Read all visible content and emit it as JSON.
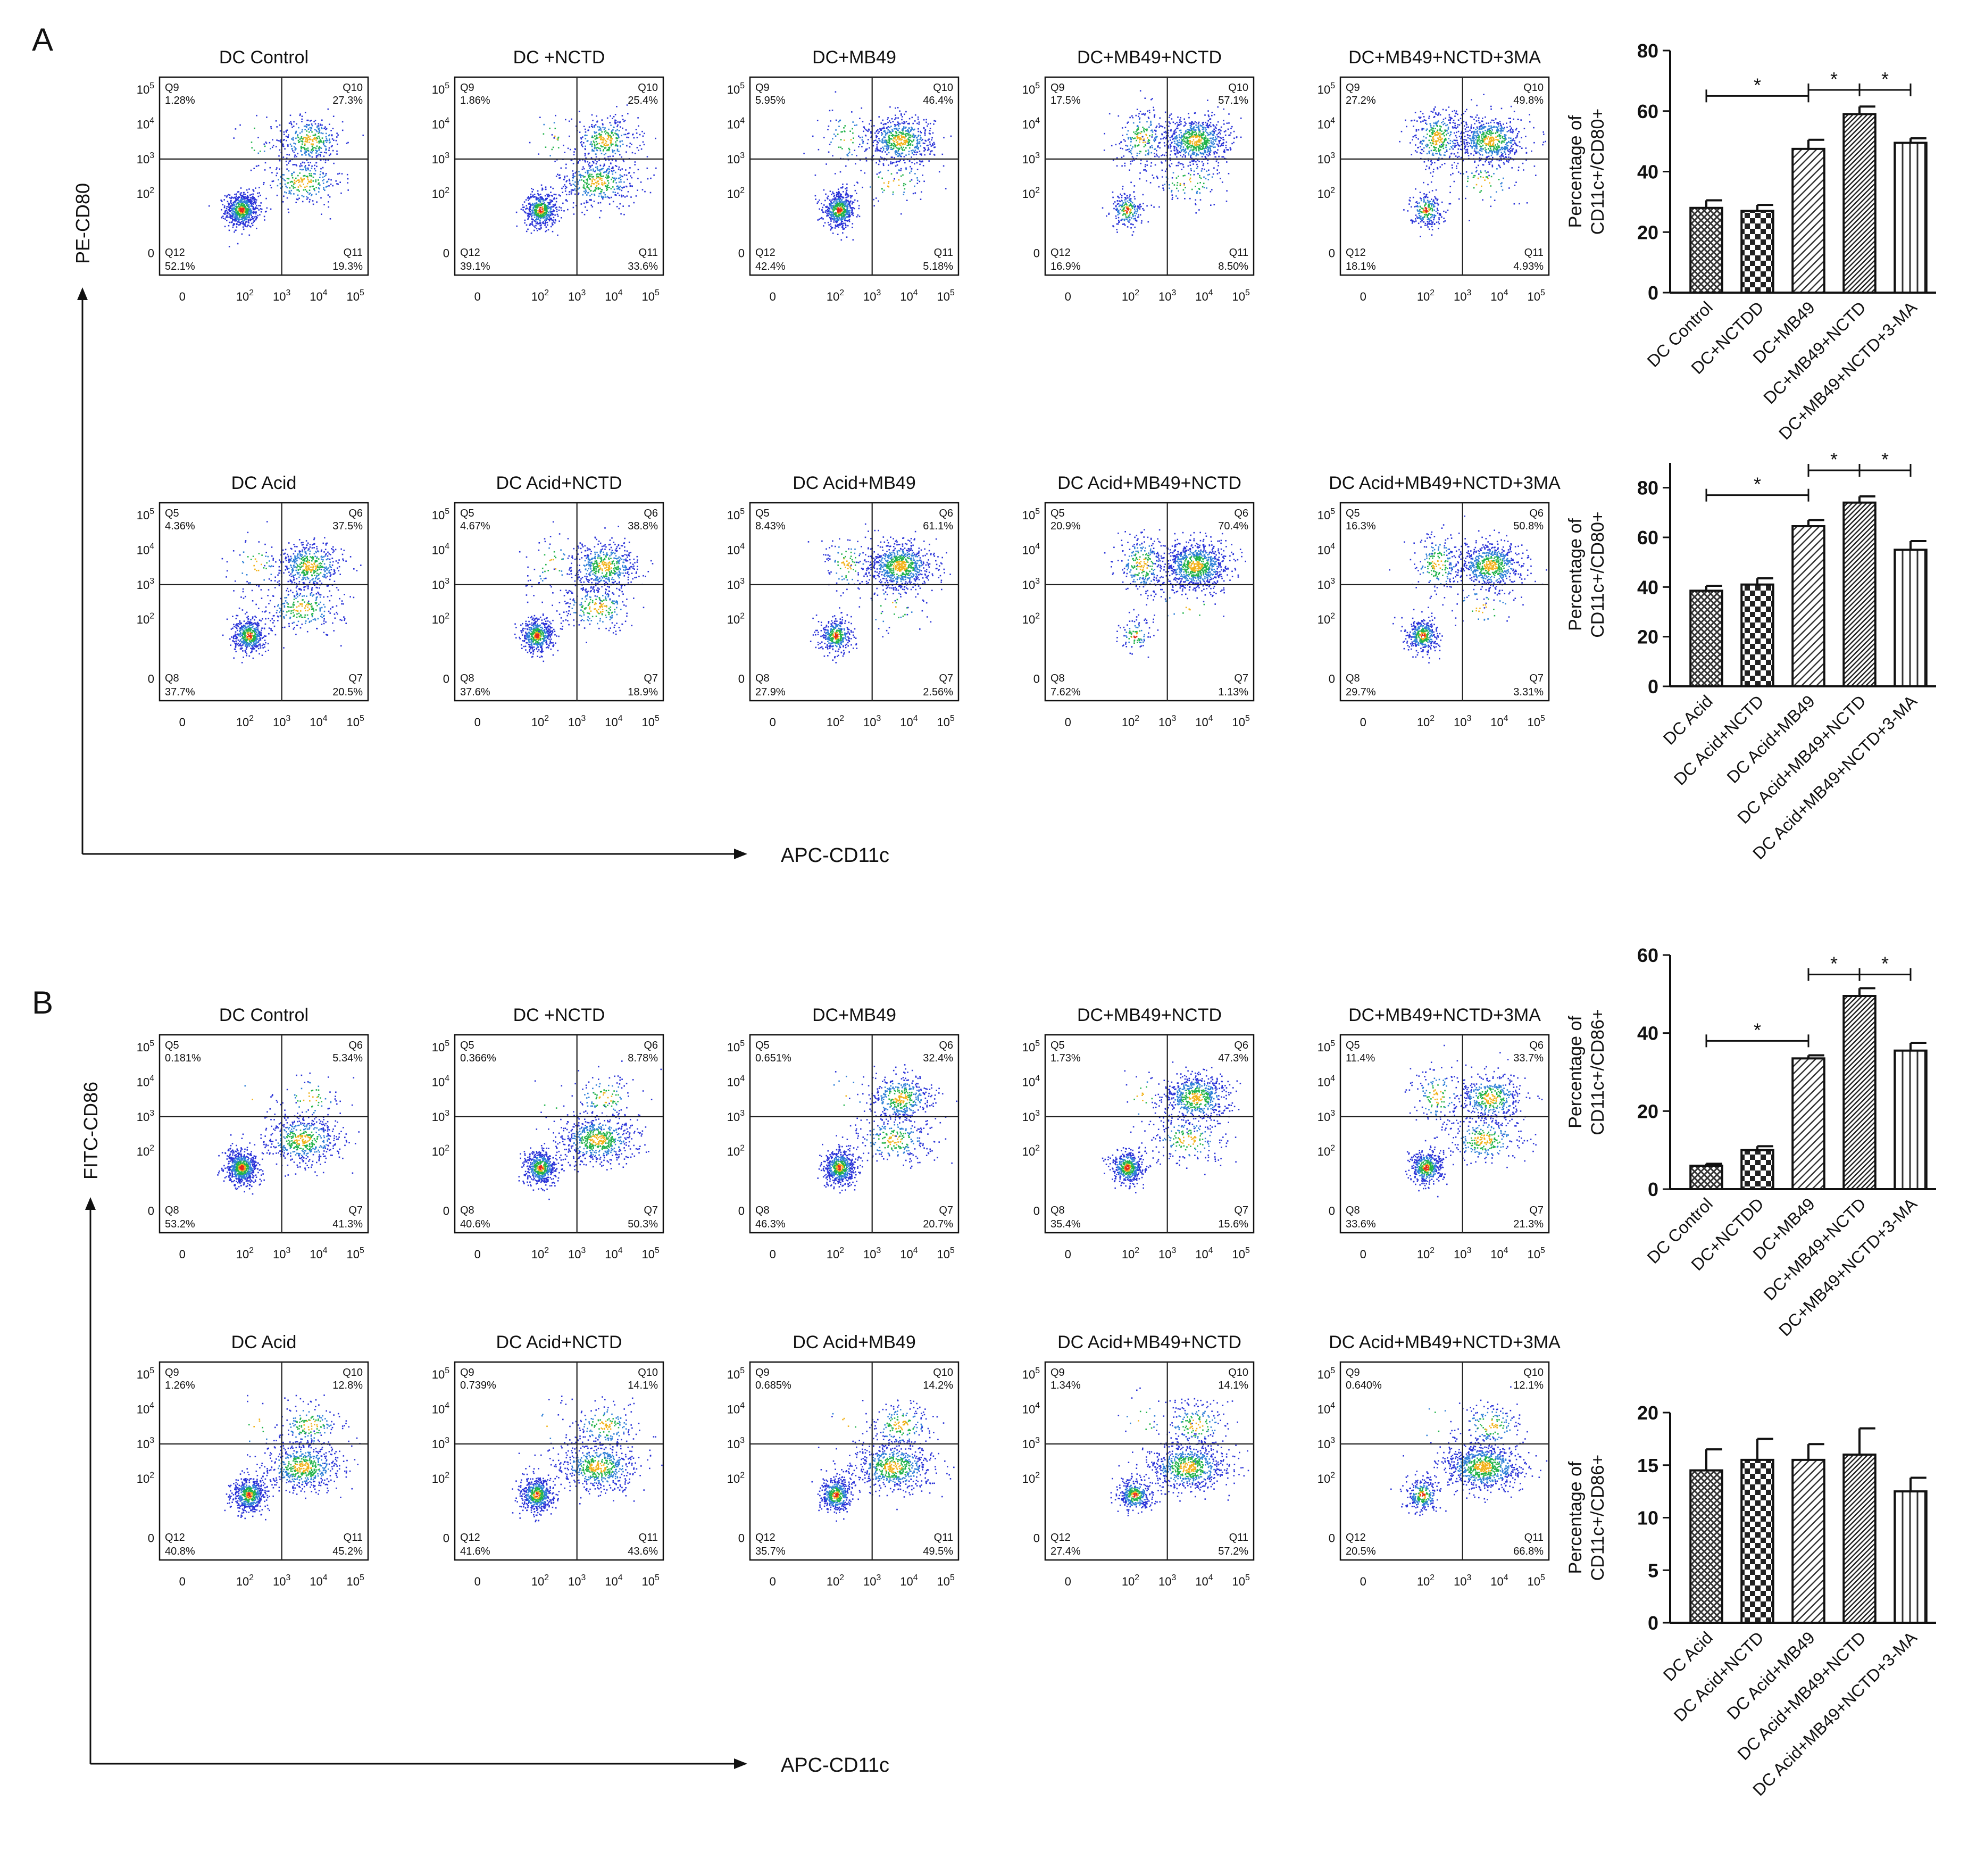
{
  "figure": {
    "panels": [
      {
        "label": "A",
        "x_axis_label": "APC-CD11c",
        "y_axis_label": "PE-CD80",
        "rows": [
          {
            "plots": [
              {
                "title": "DC Control",
                "q": {
                  "ul": "Q9",
                  "ur": "Q10",
                  "ll": "Q12",
                  "lr": "Q11"
                },
                "p": {
                  "ul": "1.28%",
                  "ur": "27.3%",
                  "ll": "52.1%",
                  "lr": "19.3%"
                }
              },
              {
                "title": "DC +NCTD",
                "q": {
                  "ul": "Q9",
                  "ur": "Q10",
                  "ll": "Q12",
                  "lr": "Q11"
                },
                "p": {
                  "ul": "1.86%",
                  "ur": "25.4%",
                  "ll": "39.1%",
                  "lr": "33.6%"
                }
              },
              {
                "title": "DC+MB49",
                "q": {
                  "ul": "Q9",
                  "ur": "Q10",
                  "ll": "Q12",
                  "lr": "Q11"
                },
                "p": {
                  "ul": "5.95%",
                  "ur": "46.4%",
                  "ll": "42.4%",
                  "lr": "5.18%"
                }
              },
              {
                "title": "DC+MB49+NCTD",
                "q": {
                  "ul": "Q9",
                  "ur": "Q10",
                  "ll": "Q12",
                  "lr": "Q11"
                },
                "p": {
                  "ul": "17.5%",
                  "ur": "57.1%",
                  "ll": "16.9%",
                  "lr": "8.50%"
                }
              },
              {
                "title": "DC+MB49+NCTD+3MA",
                "q": {
                  "ul": "Q9",
                  "ur": "Q10",
                  "ll": "Q12",
                  "lr": "Q11"
                },
                "p": {
                  "ul": "27.2%",
                  "ur": "49.8%",
                  "ll": "18.1%",
                  "lr": "4.93%"
                }
              }
            ]
          },
          {
            "plots": [
              {
                "title": "DC Acid",
                "q": {
                  "ul": "Q5",
                  "ur": "Q6",
                  "ll": "Q8",
                  "lr": "Q7"
                },
                "p": {
                  "ul": "4.36%",
                  "ur": "37.5%",
                  "ll": "37.7%",
                  "lr": "20.5%"
                }
              },
              {
                "title": "DC Acid+NCTD",
                "q": {
                  "ul": "Q5",
                  "ur": "Q6",
                  "ll": "Q8",
                  "lr": "Q7"
                },
                "p": {
                  "ul": "4.67%",
                  "ur": "38.8%",
                  "ll": "37.6%",
                  "lr": "18.9%"
                }
              },
              {
                "title": "DC Acid+MB49",
                "q": {
                  "ul": "Q5",
                  "ur": "Q6",
                  "ll": "Q8",
                  "lr": "Q7"
                },
                "p": {
                  "ul": "8.43%",
                  "ur": "61.1%",
                  "ll": "27.9%",
                  "lr": "2.56%"
                }
              },
              {
                "title": "DC Acid+MB49+NCTD",
                "q": {
                  "ul": "Q5",
                  "ur": "Q6",
                  "ll": "Q8",
                  "lr": "Q7"
                },
                "p": {
                  "ul": "20.9%",
                  "ur": "70.4%",
                  "ll": "7.62%",
                  "lr": "1.13%"
                }
              },
              {
                "title": "DC Acid+MB49+NCTD+3MA",
                "q": {
                  "ul": "Q5",
                  "ur": "Q6",
                  "ll": "Q8",
                  "lr": "Q7"
                },
                "p": {
                  "ul": "16.3%",
                  "ur": "50.8%",
                  "ll": "29.7%",
                  "lr": "3.31%"
                }
              }
            ]
          }
        ]
      },
      {
        "label": "B",
        "x_axis_label": "APC-CD11c",
        "y_axis_label": "FITC-CD86",
        "rows": [
          {
            "plots": [
              {
                "title": "DC Control",
                "q": {
                  "ul": "Q5",
                  "ur": "Q6",
                  "ll": "Q8",
                  "lr": "Q7"
                },
                "p": {
                  "ul": "0.181%",
                  "ur": "5.34%",
                  "ll": "53.2%",
                  "lr": "41.3%"
                }
              },
              {
                "title": "DC +NCTD",
                "q": {
                  "ul": "Q5",
                  "ur": "Q6",
                  "ll": "Q8",
                  "lr": "Q7"
                },
                "p": {
                  "ul": "0.366%",
                  "ur": "8.78%",
                  "ll": "40.6%",
                  "lr": "50.3%"
                }
              },
              {
                "title": "DC+MB49",
                "q": {
                  "ul": "Q5",
                  "ur": "Q6",
                  "ll": "Q8",
                  "lr": "Q7"
                },
                "p": {
                  "ul": "0.651%",
                  "ur": "32.4%",
                  "ll": "46.3%",
                  "lr": "20.7%"
                }
              },
              {
                "title": "DC+MB49+NCTD",
                "q": {
                  "ul": "Q5",
                  "ur": "Q6",
                  "ll": "Q8",
                  "lr": "Q7"
                },
                "p": {
                  "ul": "1.73%",
                  "ur": "47.3%",
                  "ll": "35.4%",
                  "lr": "15.6%"
                }
              },
              {
                "title": "DC+MB49+NCTD+3MA",
                "q": {
                  "ul": "Q5",
                  "ur": "Q6",
                  "ll": "Q8",
                  "lr": "Q7"
                },
                "p": {
                  "ul": "11.4%",
                  "ur": "33.7%",
                  "ll": "33.6%",
                  "lr": "21.3%"
                }
              }
            ]
          },
          {
            "plots": [
              {
                "title": "DC Acid",
                "q": {
                  "ul": "Q9",
                  "ur": "Q10",
                  "ll": "Q12",
                  "lr": "Q11"
                },
                "p": {
                  "ul": "1.26%",
                  "ur": "12.8%",
                  "ll": "40.8%",
                  "lr": "45.2%"
                }
              },
              {
                "title": "DC Acid+NCTD",
                "q": {
                  "ul": "Q9",
                  "ur": "Q10",
                  "ll": "Q12",
                  "lr": "Q11"
                },
                "p": {
                  "ul": "0.739%",
                  "ur": "14.1%",
                  "ll": "41.6%",
                  "lr": "43.6%"
                }
              },
              {
                "title": "DC Acid+MB49",
                "q": {
                  "ul": "Q9",
                  "ur": "Q10",
                  "ll": "Q12",
                  "lr": "Q11"
                },
                "p": {
                  "ul": "0.685%",
                  "ur": "14.2%",
                  "ll": "35.7%",
                  "lr": "49.5%"
                }
              },
              {
                "title": "DC Acid+MB49+NCTD",
                "q": {
                  "ul": "Q9",
                  "ur": "Q10",
                  "ll": "Q12",
                  "lr": "Q11"
                },
                "p": {
                  "ul": "1.34%",
                  "ur": "14.1%",
                  "ll": "27.4%",
                  "lr": "57.2%"
                }
              },
              {
                "title": "DC Acid+MB49+NCTD+3MA",
                "q": {
                  "ul": "Q9",
                  "ur": "Q10",
                  "ll": "Q12",
                  "lr": "Q11"
                },
                "p": {
                  "ul": "0.640%",
                  "ur": "12.1%",
                  "ll": "20.5%",
                  "lr": "66.8%"
                }
              }
            ]
          }
        ]
      }
    ],
    "flow_axis": {
      "x_ticks": [
        "0",
        "10",
        "10",
        "10",
        "10"
      ],
      "x_exps": [
        "",
        "2",
        "3",
        "4",
        "5"
      ],
      "y_ticks": [
        "0",
        "10",
        "10",
        "10",
        "10"
      ],
      "y_exps": [
        "",
        "2",
        "3",
        "4",
        "5"
      ]
    }
  },
  "chart_data": [
    {
      "type": "bar",
      "panel": "A",
      "ylabel": "Percentage of CD11c+/CD80+",
      "ylim": [
        0,
        80
      ],
      "y_ticks": [
        0,
        20,
        40,
        60,
        80
      ],
      "categories": [
        "DC Control",
        "DC+NCTDD",
        "DC+MB49",
        "DC+MB49+NCTD",
        "DC+MB49+NCTD+3-MA"
      ],
      "values": [
        28,
        27,
        47.5,
        59,
        49.5
      ],
      "errors": [
        2.5,
        2,
        3,
        2.5,
        1.5
      ],
      "patterns": [
        "crosshatch",
        "checker",
        "diag",
        "diagdense",
        "vert"
      ],
      "significance": [
        {
          "from": 0,
          "to": 2,
          "label": "*",
          "level": 65
        },
        {
          "from": 2,
          "to": 3,
          "label": "*",
          "level": 67
        },
        {
          "from": 3,
          "to": 4,
          "label": "*",
          "level": 67
        }
      ]
    },
    {
      "type": "bar",
      "panel": "A",
      "ylabel": "Percentage of CD11c+/CD80+",
      "ylim": [
        0,
        90
      ],
      "y_ticks": [
        0,
        20,
        40,
        60,
        80
      ],
      "categories": [
        "DC Acid",
        "DC Acid+NCTD",
        "DC Acid+MB49",
        "DC Acid+MB49+NCTD",
        "DC Acid+MB49+NCTD+3-MA"
      ],
      "values": [
        38.5,
        41,
        64.5,
        74,
        55
      ],
      "errors": [
        2,
        2.5,
        2.5,
        2.5,
        3.5
      ],
      "patterns": [
        "crosshatch",
        "checker",
        "diag",
        "diagdense",
        "vert"
      ],
      "significance": [
        {
          "from": 0,
          "to": 2,
          "label": "*",
          "level": 77
        },
        {
          "from": 2,
          "to": 3,
          "label": "*",
          "level": 87
        },
        {
          "from": 3,
          "to": 4,
          "label": "*",
          "level": 87
        }
      ]
    },
    {
      "type": "bar",
      "panel": "B",
      "ylabel": "Percentage of CD11c+/CD86+",
      "ylim": [
        0,
        60
      ],
      "y_ticks": [
        0,
        20,
        40,
        60
      ],
      "categories": [
        "DC Control",
        "DC+NCTDD",
        "DC+MB49",
        "DC+MB49+NCTD",
        "DC+MB49+NCTD+3-MA"
      ],
      "values": [
        6,
        10,
        33.5,
        49.5,
        35.5
      ],
      "errors": [
        0.5,
        1,
        0.8,
        2,
        2
      ],
      "patterns": [
        "crosshatch",
        "checker",
        "diag",
        "diagdense",
        "vert"
      ],
      "significance": [
        {
          "from": 0,
          "to": 2,
          "label": "*",
          "level": 38
        },
        {
          "from": 2,
          "to": 3,
          "label": "*",
          "level": 55
        },
        {
          "from": 3,
          "to": 4,
          "label": "*",
          "level": 55
        }
      ]
    },
    {
      "type": "bar",
      "panel": "B",
      "ylabel": "Percentage of CD11c+/CD86+",
      "ylim": [
        0,
        20
      ],
      "y_ticks": [
        0,
        5,
        10,
        15,
        20
      ],
      "categories": [
        "DC Acid",
        "DC Acid+NCTD",
        "DC Acid+MB49",
        "DC Acid+MB49+NCTD",
        "DC Acid+MB49+NCTD+3-MA"
      ],
      "values": [
        14.5,
        15.5,
        15.5,
        16,
        12.5
      ],
      "errors": [
        2,
        2,
        1.5,
        2.5,
        1.3
      ],
      "patterns": [
        "crosshatch",
        "checker",
        "diag",
        "diagdense",
        "vert"
      ],
      "significance": []
    }
  ]
}
